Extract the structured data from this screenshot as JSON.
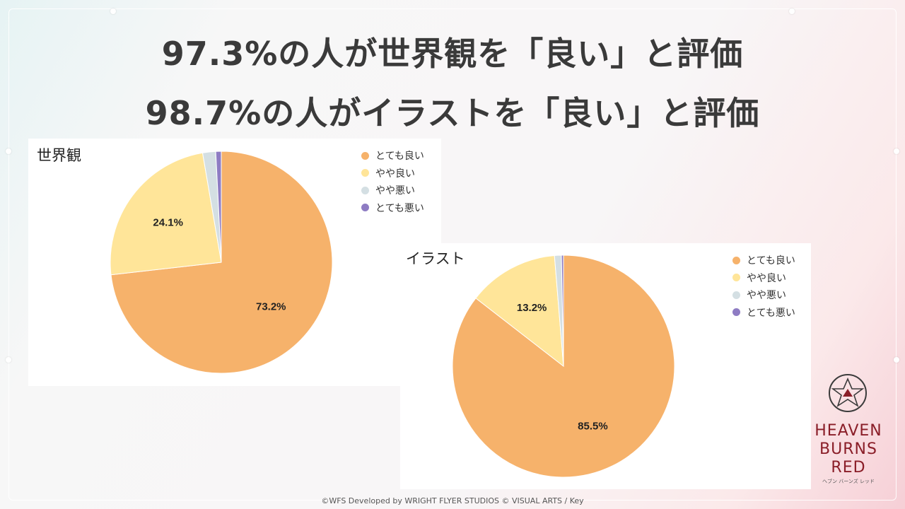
{
  "headlines": [
    "97.3%の人が世界観を「良い」と評価",
    "98.7%の人がイラストを「良い」と評価"
  ],
  "colors": {
    "very_good": "#f6b26b",
    "somewhat_good": "#ffe599",
    "somewhat_bad": "#d4dfe3",
    "very_bad": "#8e7cc3"
  },
  "chart_data": [
    {
      "type": "pie",
      "title": "世界観",
      "categories": [
        "とても良い",
        "やや良い",
        "やや悪い",
        "とても悪い"
      ],
      "values": [
        73.2,
        24.1,
        1.9,
        0.8
      ],
      "data_labels": [
        "73.2%",
        "24.1%",
        "",
        ""
      ],
      "legend_position": "top-right"
    },
    {
      "type": "pie",
      "title": "イラスト",
      "categories": [
        "とても良い",
        "やや良い",
        "やや悪い",
        "とても悪い"
      ],
      "values": [
        85.5,
        13.2,
        1.0,
        0.3
      ],
      "data_labels": [
        "85.5%",
        "13.2%",
        "",
        ""
      ],
      "legend_position": "top-right"
    }
  ],
  "brand": {
    "line1": "HEAVEN",
    "line2": "BURNS",
    "line3": "RED",
    "subtitle": "ヘブン バーンズ レッド",
    "logo_icon": "star-emblem-icon"
  },
  "copyright": "©WFS Developed by WRIGHT FLYER STUDIOS  © VISUAL ARTS / Key"
}
